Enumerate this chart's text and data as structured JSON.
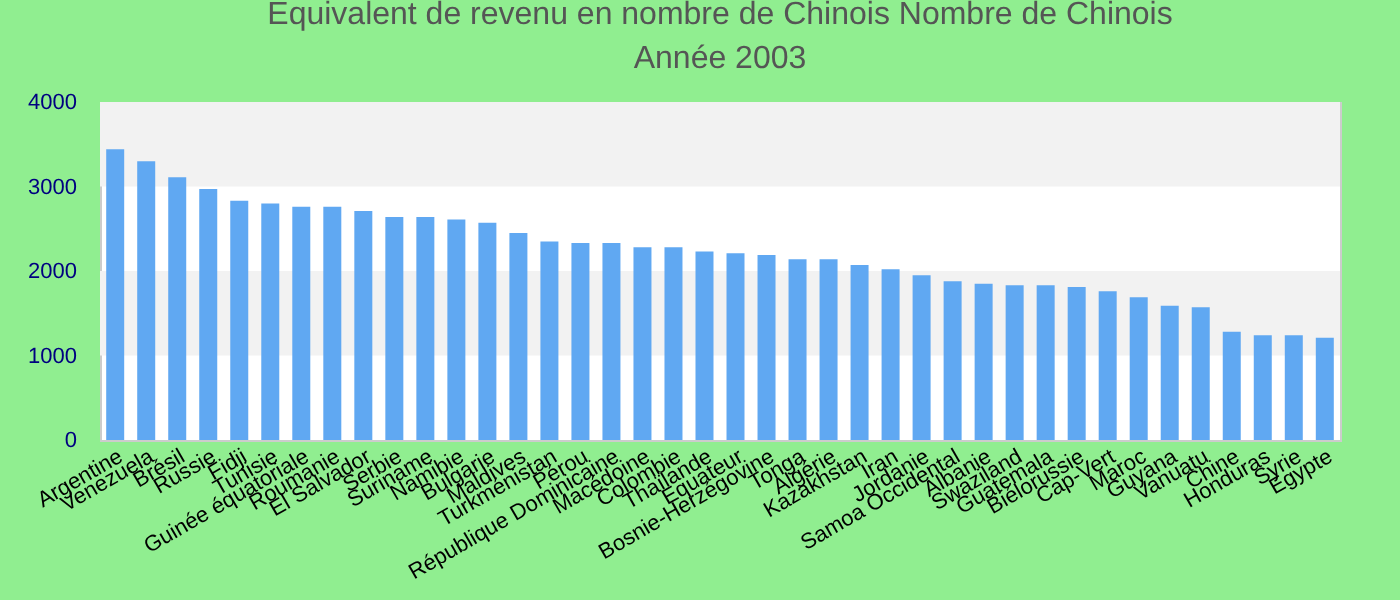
{
  "chart_data": {
    "type": "bar",
    "title": "Equivalent de revenu en nombre de Chinois  Nombre de Chinois",
    "subtitle": "Année 2003",
    "categories": [
      "Argentine",
      "Venezuela",
      "Brésil",
      "Russie",
      "Fidji",
      "Tunisie",
      "Guinée équatoriale",
      "Roumanie",
      "El Salvador",
      "Serbie",
      "Suriname",
      "Namibie",
      "Bulgarie",
      "Maldives",
      "Turkménistan",
      "Pérou",
      "République Dominicaine",
      "Macédoine",
      "Colombie",
      "Thaïlande",
      "Equateur",
      "Bosnie-Herzégovine",
      "Tonga",
      "Algérie",
      "Kazakhstan",
      "Iran",
      "Jordanie",
      "Samoa Occidental",
      "Albanie",
      "Swaziland",
      "Guatemala",
      "Biélorussie",
      "Cap-Vert",
      "Maroc",
      "Guyana",
      "Vanuatu",
      "Chine",
      "Honduras",
      "Syrie",
      "Egypte"
    ],
    "values": [
      3440,
      3300,
      3110,
      2970,
      2830,
      2800,
      2760,
      2760,
      2710,
      2640,
      2640,
      2610,
      2570,
      2450,
      2350,
      2330,
      2330,
      2280,
      2280,
      2230,
      2210,
      2190,
      2140,
      2140,
      2070,
      2020,
      1950,
      1880,
      1850,
      1830,
      1830,
      1810,
      1760,
      1690,
      1590,
      1570,
      1280,
      1240,
      1240,
      1210
    ],
    "color": "#60a8f2",
    "ylim": [
      0,
      4000
    ],
    "yticks": [
      0,
      1000,
      2000,
      3000,
      4000
    ],
    "bands": [
      {
        "axis": "y",
        "from": 1000,
        "to": 2000,
        "color": "#f2f2f2"
      },
      {
        "axis": "y",
        "from": 3000,
        "to": 4000,
        "color": "#f2f2f2"
      }
    ],
    "grid": false
  }
}
